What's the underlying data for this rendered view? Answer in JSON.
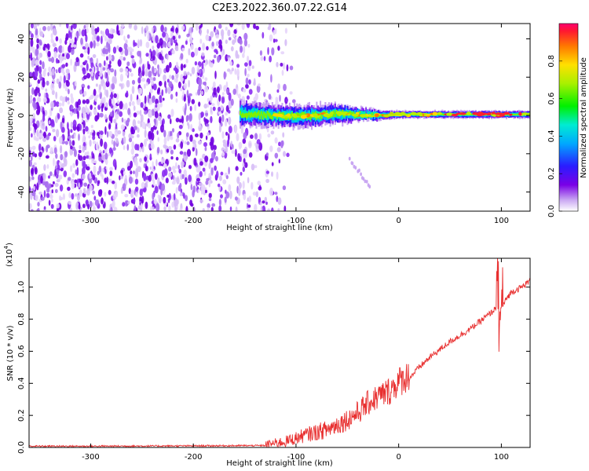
{
  "title": "C2E3.2022.360.07.22.G14",
  "chart_data": [
    {
      "type": "heatmap",
      "xlabel": "Height of straight line (km)",
      "ylabel": "Frequency (Hz)",
      "xlim": [
        -360,
        128
      ],
      "ylim": [
        -50,
        48
      ],
      "x_ticks": [
        -300,
        -200,
        -100,
        0,
        100
      ],
      "y_ticks": [
        -40,
        -20,
        0,
        20,
        40
      ],
      "colorbar": {
        "label": "Normalized spectral amplitude",
        "range": [
          0.0,
          1.0
        ],
        "ticks": [
          "0.0",
          "0.2",
          "0.4",
          "0.6",
          "0.8"
        ]
      },
      "features": {
        "noise_region_x": [
          -360,
          -110
        ],
        "signal_start_x": -155,
        "signal_center_hz": 0,
        "signal_band_hz": [
          [
            -155,
            -4,
            6
          ],
          [
            -140,
            -4,
            5
          ],
          [
            -120,
            -4,
            4
          ],
          [
            -100,
            -5,
            4
          ],
          [
            -80,
            -4,
            4
          ],
          [
            -60,
            -3,
            5
          ],
          [
            -40,
            -2,
            3
          ],
          [
            -20,
            -2,
            2
          ],
          [
            0,
            -1,
            2
          ],
          [
            50,
            -1,
            2
          ],
          [
            90,
            -1,
            2
          ],
          [
            128,
            -1,
            2
          ]
        ]
      }
    },
    {
      "type": "line",
      "xlabel": "Height of straight line (km)",
      "ylabel": "SNR (10 * v/v)",
      "yscale_label": "(x10",
      "yscale_exp": "4",
      "xlim": [
        -360,
        128
      ],
      "ylim": [
        0.0,
        1.18
      ],
      "x_ticks": [
        -300,
        -200,
        -100,
        0,
        100
      ],
      "y_ticks": [
        "0.0",
        "0.2",
        "0.4",
        "0.6",
        "0.8",
        "1.0"
      ],
      "series": [
        {
          "color": "#e83030",
          "x": [
            -360,
            -300,
            -200,
            -130,
            -110,
            -90,
            -70,
            -50,
            -40,
            -30,
            -20,
            -10,
            0,
            10,
            20,
            30,
            40,
            50,
            60,
            70,
            80,
            90,
            95,
            100,
            105,
            110,
            120,
            128
          ],
          "y": [
            0.008,
            0.008,
            0.01,
            0.012,
            0.03,
            0.07,
            0.1,
            0.16,
            0.2,
            0.26,
            0.3,
            0.33,
            0.39,
            0.43,
            0.5,
            0.56,
            0.61,
            0.66,
            0.7,
            0.74,
            0.79,
            0.84,
            0.87,
            0.86,
            0.93,
            0.97,
            1.0,
            1.04
          ]
        }
      ]
    }
  ]
}
